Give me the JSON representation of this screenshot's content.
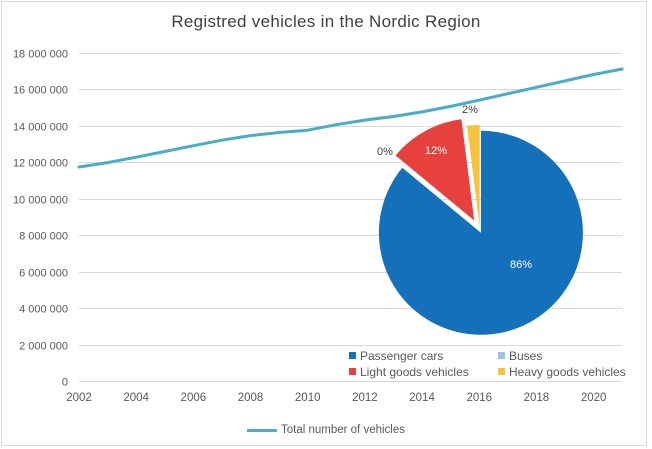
{
  "title": "Registred vehicles in the Nordic Region",
  "colors": {
    "line": "#4AACC6",
    "grid": "#D9D9D9",
    "title_text": "#404040",
    "axis_text": "#595959",
    "pie_label_dark": "#404040",
    "pie_label_light": "#FFFFFF"
  },
  "chart_data": [
    {
      "type": "line",
      "title": "Registred vehicles in the Nordic Region",
      "xlabel": "",
      "ylabel": "",
      "x": [
        2002,
        2003,
        2004,
        2005,
        2006,
        2007,
        2008,
        2009,
        2010,
        2011,
        2012,
        2013,
        2014,
        2015,
        2016,
        2017,
        2018,
        2019,
        2020,
        2021
      ],
      "series": [
        {
          "name": "Total number of vehicles",
          "values": [
            11730000,
            11970000,
            12270000,
            12580000,
            12900000,
            13200000,
            13450000,
            13620000,
            13750000,
            14050000,
            14300000,
            14500000,
            14750000,
            15050000,
            15400000,
            15750000,
            16100000,
            16450000,
            16800000,
            17100000
          ]
        }
      ],
      "x_ticks": [
        "2002",
        "2004",
        "2006",
        "2008",
        "2010",
        "2012",
        "2014",
        "2016",
        "2018",
        "2020"
      ],
      "y_ticks": [
        {
          "value": 0,
          "label": "0"
        },
        {
          "value": 2000000,
          "label": "2 000 000"
        },
        {
          "value": 4000000,
          "label": "4 000 000"
        },
        {
          "value": 6000000,
          "label": "6 000 000"
        },
        {
          "value": 8000000,
          "label": "8 000 000"
        },
        {
          "value": 10000000,
          "label": "10 000 000"
        },
        {
          "value": 12000000,
          "label": "12 000 000"
        },
        {
          "value": 14000000,
          "label": "14 000 000"
        },
        {
          "value": 16000000,
          "label": "16 000 000"
        },
        {
          "value": 18000000,
          "label": "18 000 000"
        }
      ],
      "ylim": [
        0,
        18000000
      ],
      "grid": true,
      "legend_position": "bottom"
    },
    {
      "type": "pie",
      "slices": [
        {
          "label": "Passenger cars",
          "value": 86,
          "pct_label": "86%",
          "color": "#1470B8"
        },
        {
          "label": "Buses",
          "value": 0,
          "pct_label": "0%",
          "color": "#9BC3E6"
        },
        {
          "label": "Light goods vehicles",
          "value": 12,
          "pct_label": "12%",
          "color": "#E6413C"
        },
        {
          "label": "Heavy goods vehicles",
          "value": 2,
          "pct_label": "2%",
          "color": "#F5C33C"
        }
      ],
      "legend_position": "bottom"
    }
  ]
}
